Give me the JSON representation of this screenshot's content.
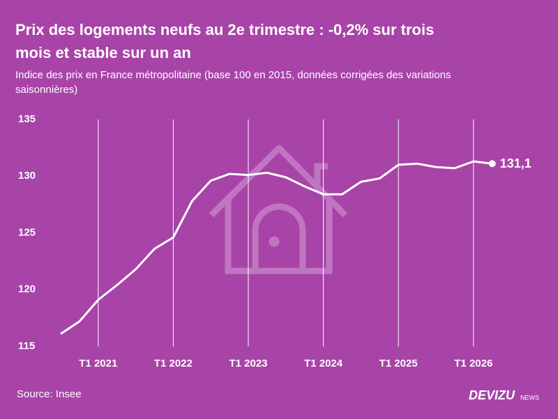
{
  "chart_data": {
    "type": "line",
    "title": "Prix des logements neufs au 2e trimestre : -0,2% sur trois",
    "title_line2": "mois et stable sur un an",
    "subtitle": "Indice des prix en France métropolitaine (base 100 en 2015, données corrigées des variations",
    "subtitle_line2": "saisonnières)",
    "source": "Source: Insee",
    "brand": "DEVIZU",
    "brand_suffix": "NEWS",
    "categories": [
      null,
      null,
      "T1 2021",
      null,
      null,
      null,
      "T1 2022",
      null,
      null,
      null,
      "T1 2023",
      null,
      null,
      null,
      "T1 2024",
      null,
      null,
      null,
      "T1 2025",
      null,
      null,
      null,
      "T1 2026",
      null
    ],
    "series": [
      {
        "name": "Indice",
        "color": "#ffffff",
        "values": [
          116.1,
          117.2,
          119.1,
          120.4,
          121.8,
          123.6,
          124.6,
          127.8,
          129.6,
          130.2,
          130.1,
          130.3,
          129.9,
          129.1,
          128.4,
          128.4,
          129.5,
          129.8,
          131.0,
          131.1,
          130.8,
          130.7,
          131.3,
          131.1
        ],
        "value_labels": [
          null,
          null,
          null,
          null,
          null,
          null,
          null,
          null,
          null,
          null,
          null,
          null,
          null,
          null,
          null,
          null,
          null,
          null,
          null,
          null,
          null,
          null,
          null,
          "131,1"
        ]
      }
    ],
    "ylim": [
      115,
      135
    ],
    "yticks": [
      115,
      120,
      125,
      130,
      135
    ],
    "grid": "x"
  }
}
